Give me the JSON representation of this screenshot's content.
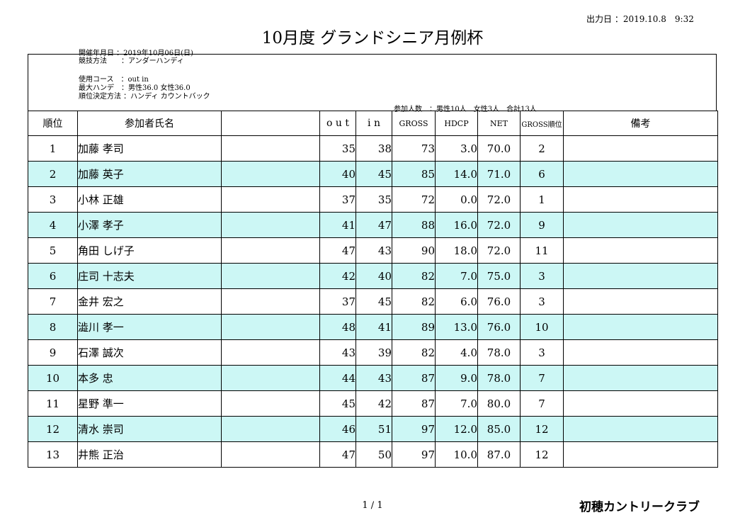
{
  "header": {
    "output_date": "出力日 ：2019.10.8　9:32",
    "title": "10月度 グランドシニア月例杯",
    "held_date": "開催年月日 ：2019年10月06日(日)"
  },
  "info": {
    "method": "競技方法　　：アンダーハンディ",
    "course": "使用コース　：out in",
    "max_handicap": "最大ハンデ　：男性36.0 女性36.0",
    "ranking_method": "順位決定方法 ：ハンディ カウントバック",
    "participants": "参加人数　：男性10人　女性3人　合計13人"
  },
  "table": {
    "headers": {
      "rank": "順位",
      "name": "参加者氏名",
      "out": "o u t",
      "in": "i n",
      "gross": "GROSS",
      "hdcp": "HDCP",
      "net": "NET",
      "gross_rank": "GROSS順位",
      "notes": "備考"
    },
    "rows": [
      {
        "rank": "1",
        "name": "加藤 孝司",
        "out": "35",
        "in": "38",
        "gross": "73",
        "hdcp": "3.0",
        "net": "70.0",
        "gross_rank": "2",
        "notes": ""
      },
      {
        "rank": "2",
        "name": "加藤 英子",
        "out": "40",
        "in": "45",
        "gross": "85",
        "hdcp": "14.0",
        "net": "71.0",
        "gross_rank": "6",
        "notes": ""
      },
      {
        "rank": "3",
        "name": "小林 正雄",
        "out": "37",
        "in": "35",
        "gross": "72",
        "hdcp": "0.0",
        "net": "72.0",
        "gross_rank": "1",
        "notes": ""
      },
      {
        "rank": "4",
        "name": "小澤 孝子",
        "out": "41",
        "in": "47",
        "gross": "88",
        "hdcp": "16.0",
        "net": "72.0",
        "gross_rank": "9",
        "notes": ""
      },
      {
        "rank": "5",
        "name": "角田 しげ子",
        "out": "47",
        "in": "43",
        "gross": "90",
        "hdcp": "18.0",
        "net": "72.0",
        "gross_rank": "11",
        "notes": ""
      },
      {
        "rank": "6",
        "name": "庄司 十志夫",
        "out": "42",
        "in": "40",
        "gross": "82",
        "hdcp": "7.0",
        "net": "75.0",
        "gross_rank": "3",
        "notes": ""
      },
      {
        "rank": "7",
        "name": "金井 宏之",
        "out": "37",
        "in": "45",
        "gross": "82",
        "hdcp": "6.0",
        "net": "76.0",
        "gross_rank": "3",
        "notes": ""
      },
      {
        "rank": "8",
        "name": "澁川 孝一",
        "out": "48",
        "in": "41",
        "gross": "89",
        "hdcp": "13.0",
        "net": "76.0",
        "gross_rank": "10",
        "notes": ""
      },
      {
        "rank": "9",
        "name": "石澤 誠次",
        "out": "43",
        "in": "39",
        "gross": "82",
        "hdcp": "4.0",
        "net": "78.0",
        "gross_rank": "3",
        "notes": ""
      },
      {
        "rank": "10",
        "name": "本多 忠",
        "out": "44",
        "in": "43",
        "gross": "87",
        "hdcp": "9.0",
        "net": "78.0",
        "gross_rank": "7",
        "notes": ""
      },
      {
        "rank": "11",
        "name": "星野 準一",
        "out": "45",
        "in": "42",
        "gross": "87",
        "hdcp": "7.0",
        "net": "80.0",
        "gross_rank": "7",
        "notes": ""
      },
      {
        "rank": "12",
        "name": "清水 崇司",
        "out": "46",
        "in": "51",
        "gross": "97",
        "hdcp": "12.0",
        "net": "85.0",
        "gross_rank": "12",
        "notes": ""
      },
      {
        "rank": "13",
        "name": "井熊 正治",
        "out": "47",
        "in": "50",
        "gross": "97",
        "hdcp": "10.0",
        "net": "87.0",
        "gross_rank": "12",
        "notes": ""
      }
    ]
  },
  "footer": {
    "page": "1 / 1",
    "club_name": "初穂カントリークラブ"
  },
  "colors": {
    "alt_row": "#ccf7f5"
  }
}
